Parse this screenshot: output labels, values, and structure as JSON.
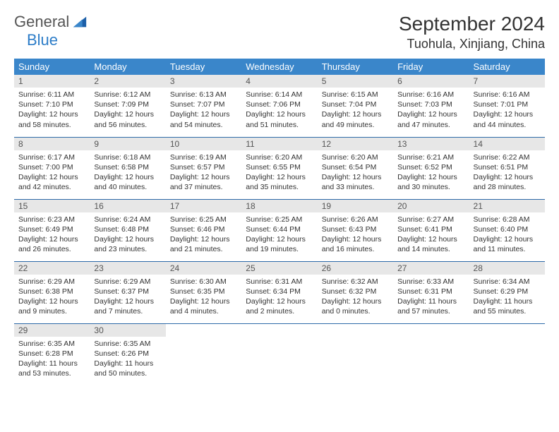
{
  "brand": {
    "part1": "General",
    "part2": "Blue"
  },
  "title": "September 2024",
  "location": "Tuohula, Xinjiang, China",
  "header_bg": "#3a86ca",
  "daynum_bg": "#e7e7e7",
  "row_border": "#2d6aa8",
  "weekdays": [
    "Sunday",
    "Monday",
    "Tuesday",
    "Wednesday",
    "Thursday",
    "Friday",
    "Saturday"
  ],
  "weeks": [
    [
      {
        "n": "1",
        "sr": "Sunrise: 6:11 AM",
        "ss": "Sunset: 7:10 PM",
        "dl": "Daylight: 12 hours and 58 minutes."
      },
      {
        "n": "2",
        "sr": "Sunrise: 6:12 AM",
        "ss": "Sunset: 7:09 PM",
        "dl": "Daylight: 12 hours and 56 minutes."
      },
      {
        "n": "3",
        "sr": "Sunrise: 6:13 AM",
        "ss": "Sunset: 7:07 PM",
        "dl": "Daylight: 12 hours and 54 minutes."
      },
      {
        "n": "4",
        "sr": "Sunrise: 6:14 AM",
        "ss": "Sunset: 7:06 PM",
        "dl": "Daylight: 12 hours and 51 minutes."
      },
      {
        "n": "5",
        "sr": "Sunrise: 6:15 AM",
        "ss": "Sunset: 7:04 PM",
        "dl": "Daylight: 12 hours and 49 minutes."
      },
      {
        "n": "6",
        "sr": "Sunrise: 6:16 AM",
        "ss": "Sunset: 7:03 PM",
        "dl": "Daylight: 12 hours and 47 minutes."
      },
      {
        "n": "7",
        "sr": "Sunrise: 6:16 AM",
        "ss": "Sunset: 7:01 PM",
        "dl": "Daylight: 12 hours and 44 minutes."
      }
    ],
    [
      {
        "n": "8",
        "sr": "Sunrise: 6:17 AM",
        "ss": "Sunset: 7:00 PM",
        "dl": "Daylight: 12 hours and 42 minutes."
      },
      {
        "n": "9",
        "sr": "Sunrise: 6:18 AM",
        "ss": "Sunset: 6:58 PM",
        "dl": "Daylight: 12 hours and 40 minutes."
      },
      {
        "n": "10",
        "sr": "Sunrise: 6:19 AM",
        "ss": "Sunset: 6:57 PM",
        "dl": "Daylight: 12 hours and 37 minutes."
      },
      {
        "n": "11",
        "sr": "Sunrise: 6:20 AM",
        "ss": "Sunset: 6:55 PM",
        "dl": "Daylight: 12 hours and 35 minutes."
      },
      {
        "n": "12",
        "sr": "Sunrise: 6:20 AM",
        "ss": "Sunset: 6:54 PM",
        "dl": "Daylight: 12 hours and 33 minutes."
      },
      {
        "n": "13",
        "sr": "Sunrise: 6:21 AM",
        "ss": "Sunset: 6:52 PM",
        "dl": "Daylight: 12 hours and 30 minutes."
      },
      {
        "n": "14",
        "sr": "Sunrise: 6:22 AM",
        "ss": "Sunset: 6:51 PM",
        "dl": "Daylight: 12 hours and 28 minutes."
      }
    ],
    [
      {
        "n": "15",
        "sr": "Sunrise: 6:23 AM",
        "ss": "Sunset: 6:49 PM",
        "dl": "Daylight: 12 hours and 26 minutes."
      },
      {
        "n": "16",
        "sr": "Sunrise: 6:24 AM",
        "ss": "Sunset: 6:48 PM",
        "dl": "Daylight: 12 hours and 23 minutes."
      },
      {
        "n": "17",
        "sr": "Sunrise: 6:25 AM",
        "ss": "Sunset: 6:46 PM",
        "dl": "Daylight: 12 hours and 21 minutes."
      },
      {
        "n": "18",
        "sr": "Sunrise: 6:25 AM",
        "ss": "Sunset: 6:44 PM",
        "dl": "Daylight: 12 hours and 19 minutes."
      },
      {
        "n": "19",
        "sr": "Sunrise: 6:26 AM",
        "ss": "Sunset: 6:43 PM",
        "dl": "Daylight: 12 hours and 16 minutes."
      },
      {
        "n": "20",
        "sr": "Sunrise: 6:27 AM",
        "ss": "Sunset: 6:41 PM",
        "dl": "Daylight: 12 hours and 14 minutes."
      },
      {
        "n": "21",
        "sr": "Sunrise: 6:28 AM",
        "ss": "Sunset: 6:40 PM",
        "dl": "Daylight: 12 hours and 11 minutes."
      }
    ],
    [
      {
        "n": "22",
        "sr": "Sunrise: 6:29 AM",
        "ss": "Sunset: 6:38 PM",
        "dl": "Daylight: 12 hours and 9 minutes."
      },
      {
        "n": "23",
        "sr": "Sunrise: 6:29 AM",
        "ss": "Sunset: 6:37 PM",
        "dl": "Daylight: 12 hours and 7 minutes."
      },
      {
        "n": "24",
        "sr": "Sunrise: 6:30 AM",
        "ss": "Sunset: 6:35 PM",
        "dl": "Daylight: 12 hours and 4 minutes."
      },
      {
        "n": "25",
        "sr": "Sunrise: 6:31 AM",
        "ss": "Sunset: 6:34 PM",
        "dl": "Daylight: 12 hours and 2 minutes."
      },
      {
        "n": "26",
        "sr": "Sunrise: 6:32 AM",
        "ss": "Sunset: 6:32 PM",
        "dl": "Daylight: 12 hours and 0 minutes."
      },
      {
        "n": "27",
        "sr": "Sunrise: 6:33 AM",
        "ss": "Sunset: 6:31 PM",
        "dl": "Daylight: 11 hours and 57 minutes."
      },
      {
        "n": "28",
        "sr": "Sunrise: 6:34 AM",
        "ss": "Sunset: 6:29 PM",
        "dl": "Daylight: 11 hours and 55 minutes."
      }
    ],
    [
      {
        "n": "29",
        "sr": "Sunrise: 6:35 AM",
        "ss": "Sunset: 6:28 PM",
        "dl": "Daylight: 11 hours and 53 minutes."
      },
      {
        "n": "30",
        "sr": "Sunrise: 6:35 AM",
        "ss": "Sunset: 6:26 PM",
        "dl": "Daylight: 11 hours and 50 minutes."
      },
      null,
      null,
      null,
      null,
      null
    ]
  ]
}
